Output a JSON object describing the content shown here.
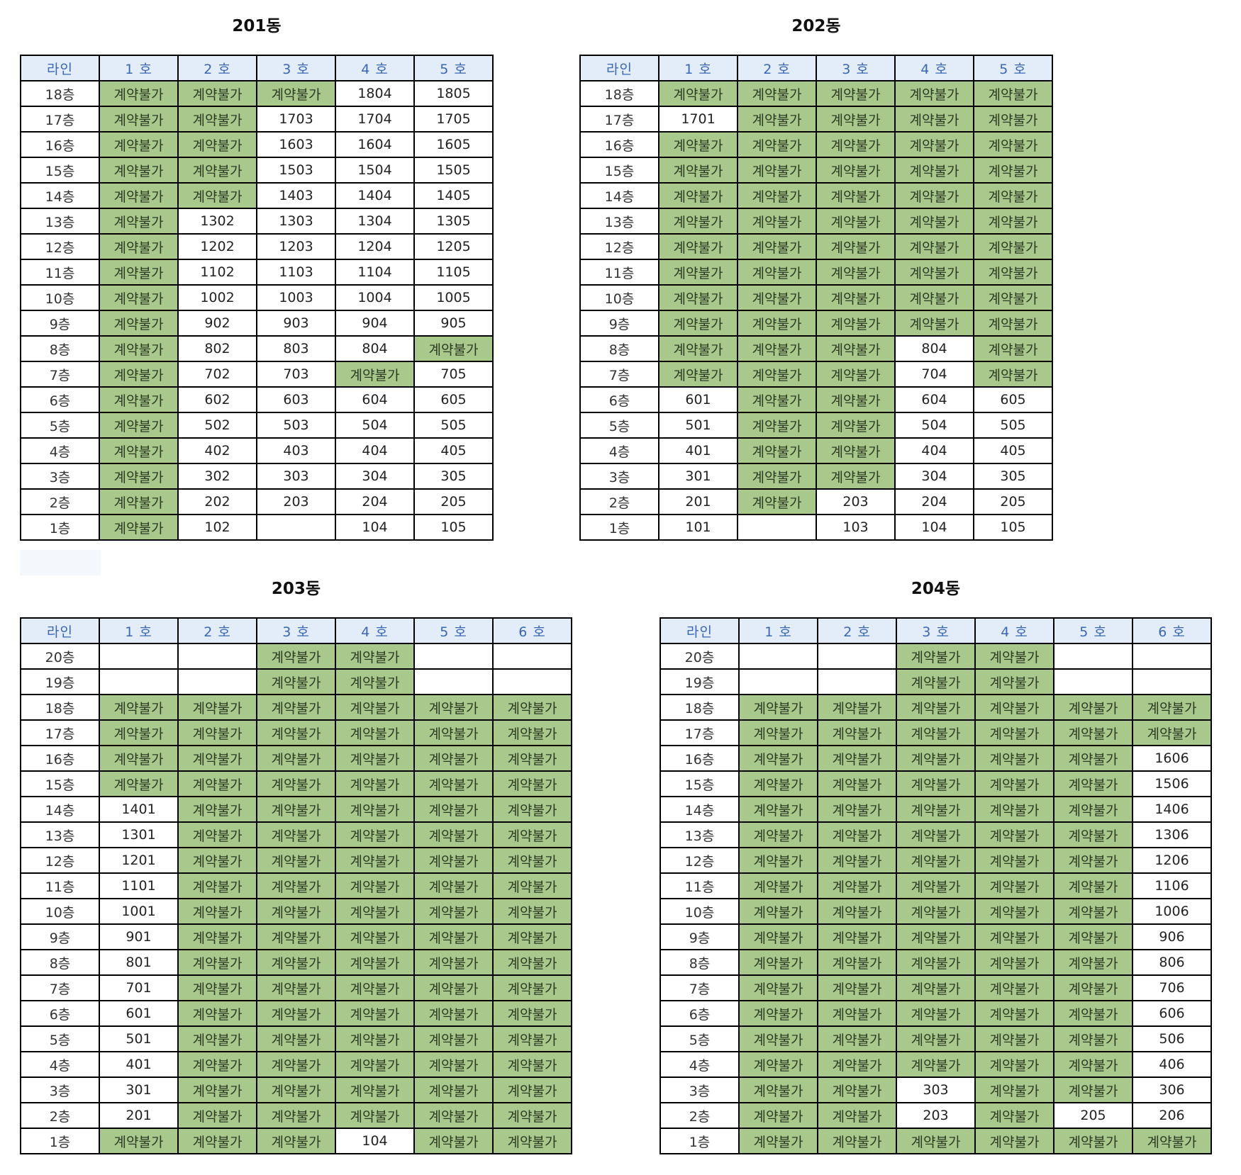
{
  "header_line_label": "라인",
  "buildings": [
    {
      "title": "201동",
      "columns": [
        "1 호",
        "2 호",
        "3 호",
        "4 호",
        "5 호"
      ],
      "rows": [
        [
          "18층",
          "계약불가",
          "계약불가",
          "계약불가",
          "1804",
          "1805"
        ],
        [
          "17층",
          "계약불가",
          "계약불가",
          "1703",
          "1704",
          "1705"
        ],
        [
          "16층",
          "계약불가",
          "계약불가",
          "1603",
          "1604",
          "1605"
        ],
        [
          "15층",
          "계약불가",
          "계약불가",
          "1503",
          "1504",
          "1505"
        ],
        [
          "14층",
          "계약불가",
          "계약불가",
          "1403",
          "1404",
          "1405"
        ],
        [
          "13층",
          "계약불가",
          "1302",
          "1303",
          "1304",
          "1305"
        ],
        [
          "12층",
          "계약불가",
          "1202",
          "1203",
          "1204",
          "1205"
        ],
        [
          "11층",
          "계약불가",
          "1102",
          "1103",
          "1104",
          "1105"
        ],
        [
          "10층",
          "계약불가",
          "1002",
          "1003",
          "1004",
          "1005"
        ],
        [
          "9층",
          "계약불가",
          "902",
          "903",
          "904",
          "905"
        ],
        [
          "8층",
          "계약불가",
          "802",
          "803",
          "804",
          "계약불가"
        ],
        [
          "7층",
          "계약불가",
          "702",
          "703",
          "계약불가",
          "705"
        ],
        [
          "6층",
          "계약불가",
          "602",
          "603",
          "604",
          "605"
        ],
        [
          "5층",
          "계약불가",
          "502",
          "503",
          "504",
          "505"
        ],
        [
          "4층",
          "계약불가",
          "402",
          "403",
          "404",
          "405"
        ],
        [
          "3층",
          "계약불가",
          "302",
          "303",
          "304",
          "305"
        ],
        [
          "2층",
          "계약불가",
          "202",
          "203",
          "204",
          "205"
        ],
        [
          "1층",
          "계약불가",
          "102",
          "",
          "104",
          "105"
        ]
      ]
    },
    {
      "title": "202동",
      "columns": [
        "1 호",
        "2 호",
        "3 호",
        "4 호",
        "5 호"
      ],
      "rows": [
        [
          "18층",
          "계약불가",
          "계약불가",
          "계약불가",
          "계약불가",
          "계약불가"
        ],
        [
          "17층",
          "1701",
          "계약불가",
          "계약불가",
          "계약불가",
          "계약불가"
        ],
        [
          "16층",
          "계약불가",
          "계약불가",
          "계약불가",
          "계약불가",
          "계약불가"
        ],
        [
          "15층",
          "계약불가",
          "계약불가",
          "계약불가",
          "계약불가",
          "계약불가"
        ],
        [
          "14층",
          "계약불가",
          "계약불가",
          "계약불가",
          "계약불가",
          "계약불가"
        ],
        [
          "13층",
          "계약불가",
          "계약불가",
          "계약불가",
          "계약불가",
          "계약불가"
        ],
        [
          "12층",
          "계약불가",
          "계약불가",
          "계약불가",
          "계약불가",
          "계약불가"
        ],
        [
          "11층",
          "계약불가",
          "계약불가",
          "계약불가",
          "계약불가",
          "계약불가"
        ],
        [
          "10층",
          "계약불가",
          "계약불가",
          "계약불가",
          "계약불가",
          "계약불가"
        ],
        [
          "9층",
          "계약불가",
          "계약불가",
          "계약불가",
          "계약불가",
          "계약불가"
        ],
        [
          "8층",
          "계약불가",
          "계약불가",
          "계약불가",
          "804",
          "계약불가"
        ],
        [
          "7층",
          "계약불가",
          "계약불가",
          "계약불가",
          "704",
          "계약불가"
        ],
        [
          "6층",
          "601",
          "계약불가",
          "계약불가",
          "604",
          "605"
        ],
        [
          "5층",
          "501",
          "계약불가",
          "계약불가",
          "504",
          "505"
        ],
        [
          "4층",
          "401",
          "계약불가",
          "계약불가",
          "404",
          "405"
        ],
        [
          "3층",
          "301",
          "계약불가",
          "계약불가",
          "304",
          "305"
        ],
        [
          "2층",
          "201",
          "계약불가",
          "203",
          "204",
          "205"
        ],
        [
          "1층",
          "101",
          "",
          "103",
          "104",
          "105"
        ]
      ]
    },
    {
      "title": "203동",
      "columns": [
        "1 호",
        "2 호",
        "3 호",
        "4 호",
        "5 호",
        "6 호"
      ],
      "rows": [
        [
          "20층",
          "",
          "",
          "계약불가",
          "계약불가",
          "",
          ""
        ],
        [
          "19층",
          "",
          "",
          "계약불가",
          "계약불가",
          "",
          ""
        ],
        [
          "18층",
          "계약불가",
          "계약불가",
          "계약불가",
          "계약불가",
          "계약불가",
          "계약불가"
        ],
        [
          "17층",
          "계약불가",
          "계약불가",
          "계약불가",
          "계약불가",
          "계약불가",
          "계약불가"
        ],
        [
          "16층",
          "계약불가",
          "계약불가",
          "계약불가",
          "계약불가",
          "계약불가",
          "계약불가"
        ],
        [
          "15층",
          "계약불가",
          "계약불가",
          "계약불가",
          "계약불가",
          "계약불가",
          "계약불가"
        ],
        [
          "14층",
          "1401",
          "계약불가",
          "계약불가",
          "계약불가",
          "계약불가",
          "계약불가"
        ],
        [
          "13층",
          "1301",
          "계약불가",
          "계약불가",
          "계약불가",
          "계약불가",
          "계약불가"
        ],
        [
          "12층",
          "1201",
          "계약불가",
          "계약불가",
          "계약불가",
          "계약불가",
          "계약불가"
        ],
        [
          "11층",
          "1101",
          "계약불가",
          "계약불가",
          "계약불가",
          "계약불가",
          "계약불가"
        ],
        [
          "10층",
          "1001",
          "계약불가",
          "계약불가",
          "계약불가",
          "계약불가",
          "계약불가"
        ],
        [
          "9층",
          "901",
          "계약불가",
          "계약불가",
          "계약불가",
          "계약불가",
          "계약불가"
        ],
        [
          "8층",
          "801",
          "계약불가",
          "계약불가",
          "계약불가",
          "계약불가",
          "계약불가"
        ],
        [
          "7층",
          "701",
          "계약불가",
          "계약불가",
          "계약불가",
          "계약불가",
          "계약불가"
        ],
        [
          "6층",
          "601",
          "계약불가",
          "계약불가",
          "계약불가",
          "계약불가",
          "계약불가"
        ],
        [
          "5층",
          "501",
          "계약불가",
          "계약불가",
          "계약불가",
          "계약불가",
          "계약불가"
        ],
        [
          "4층",
          "401",
          "계약불가",
          "계약불가",
          "계약불가",
          "계약불가",
          "계약불가"
        ],
        [
          "3층",
          "301",
          "계약불가",
          "계약불가",
          "계약불가",
          "계약불가",
          "계약불가"
        ],
        [
          "2층",
          "201",
          "계약불가",
          "계약불가",
          "계약불가",
          "계약불가",
          "계약불가"
        ],
        [
          "1층",
          "계약불가",
          "계약불가",
          "계약불가",
          "104",
          "계약불가",
          "계약불가"
        ]
      ]
    },
    {
      "title": "204동",
      "columns": [
        "1 호",
        "2 호",
        "3 호",
        "4 호",
        "5 호",
        "6 호"
      ],
      "rows": [
        [
          "20층",
          "",
          "",
          "계약불가",
          "계약불가",
          "",
          ""
        ],
        [
          "19층",
          "",
          "",
          "계약불가",
          "계약불가",
          "",
          ""
        ],
        [
          "18층",
          "계약불가",
          "계약불가",
          "계약불가",
          "계약불가",
          "계약불가",
          "계약불가"
        ],
        [
          "17층",
          "계약불가",
          "계약불가",
          "계약불가",
          "계약불가",
          "계약불가",
          "계약불가"
        ],
        [
          "16층",
          "계약불가",
          "계약불가",
          "계약불가",
          "계약불가",
          "계약불가",
          "1606"
        ],
        [
          "15층",
          "계약불가",
          "계약불가",
          "계약불가",
          "계약불가",
          "계약불가",
          "1506"
        ],
        [
          "14층",
          "계약불가",
          "계약불가",
          "계약불가",
          "계약불가",
          "계약불가",
          "1406"
        ],
        [
          "13층",
          "계약불가",
          "계약불가",
          "계약불가",
          "계약불가",
          "계약불가",
          "1306"
        ],
        [
          "12층",
          "계약불가",
          "계약불가",
          "계약불가",
          "계약불가",
          "계약불가",
          "1206"
        ],
        [
          "11층",
          "계약불가",
          "계약불가",
          "계약불가",
          "계약불가",
          "계약불가",
          "1106"
        ],
        [
          "10층",
          "계약불가",
          "계약불가",
          "계약불가",
          "계약불가",
          "계약불가",
          "1006"
        ],
        [
          "9층",
          "계약불가",
          "계약불가",
          "계약불가",
          "계약불가",
          "계약불가",
          "906"
        ],
        [
          "8층",
          "계약불가",
          "계약불가",
          "계약불가",
          "계약불가",
          "계약불가",
          "806"
        ],
        [
          "7층",
          "계약불가",
          "계약불가",
          "계약불가",
          "계약불가",
          "계약불가",
          "706"
        ],
        [
          "6층",
          "계약불가",
          "계약불가",
          "계약불가",
          "계약불가",
          "계약불가",
          "606"
        ],
        [
          "5층",
          "계약불가",
          "계약불가",
          "계약불가",
          "계약불가",
          "계약불가",
          "506"
        ],
        [
          "4층",
          "계약불가",
          "계약불가",
          "계약불가",
          "계약불가",
          "계약불가",
          "406"
        ],
        [
          "3층",
          "계약불가",
          "계약불가",
          "303",
          "계약불가",
          "계약불가",
          "306"
        ],
        [
          "2층",
          "계약불가",
          "계약불가",
          "203",
          "계약불가",
          "205",
          "206"
        ],
        [
          "1층",
          "계약불가",
          "계약불가",
          "계약불가",
          "계약불가",
          "계약불가",
          "계약불가"
        ]
      ]
    }
  ],
  "colors": {
    "unavailable_fill": "#a9c98c",
    "header_fill": "#e3edfa",
    "header_text": "#3a66b3",
    "border": "#000000"
  }
}
